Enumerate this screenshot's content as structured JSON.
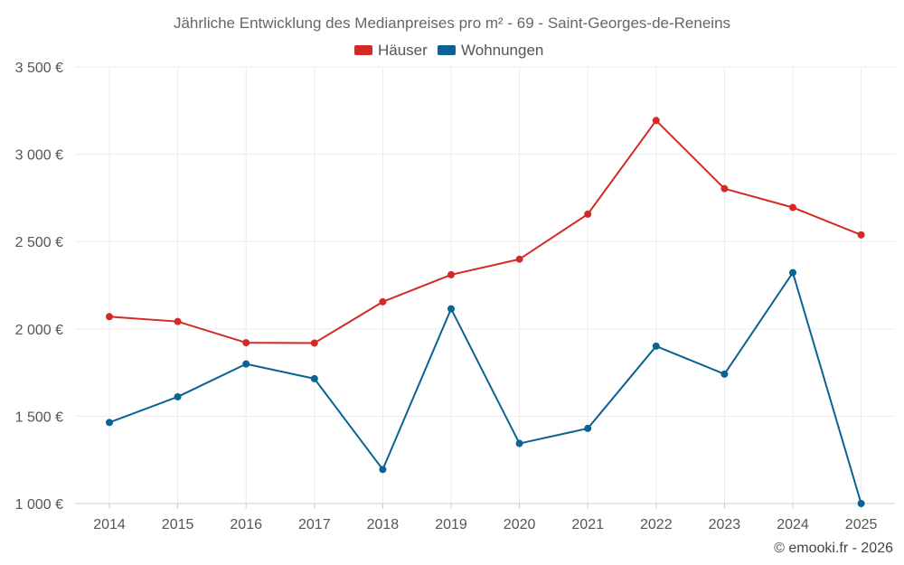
{
  "chart_data": {
    "type": "line",
    "title": "Jährliche Entwicklung des Medianpreises pro m² - 69 - Saint-Georges-de-Reneins",
    "categories": [
      "2014",
      "2015",
      "2016",
      "2017",
      "2018",
      "2019",
      "2020",
      "2021",
      "2022",
      "2023",
      "2024",
      "2025"
    ],
    "series": [
      {
        "name": "Häuser",
        "color": "#d42a26",
        "values": [
          2070,
          2042,
          1921,
          1919,
          2155,
          2310,
          2399,
          2657,
          3193,
          2803,
          2695,
          2538
        ]
      },
      {
        "name": "Wohnungen",
        "color": "#0b6294",
        "values": [
          1464,
          1611,
          1799,
          1715,
          1195,
          2115,
          1344,
          1430,
          1901,
          1741,
          2322,
          1000
        ]
      }
    ],
    "ylim": [
      1000,
      3500
    ],
    "yticks": [
      {
        "value": 1000,
        "label": "1 000 €"
      },
      {
        "value": 1500,
        "label": "1 500 €"
      },
      {
        "value": 2000,
        "label": "2 000 €"
      },
      {
        "value": 2500,
        "label": "2 500 €"
      },
      {
        "value": 3000,
        "label": "3 000 €"
      },
      {
        "value": 3500,
        "label": "3 500 €"
      }
    ],
    "xlabel": "",
    "ylabel": "",
    "grid": true,
    "legend_position": "top-center"
  },
  "credit": "© emooki.fr - 2026"
}
